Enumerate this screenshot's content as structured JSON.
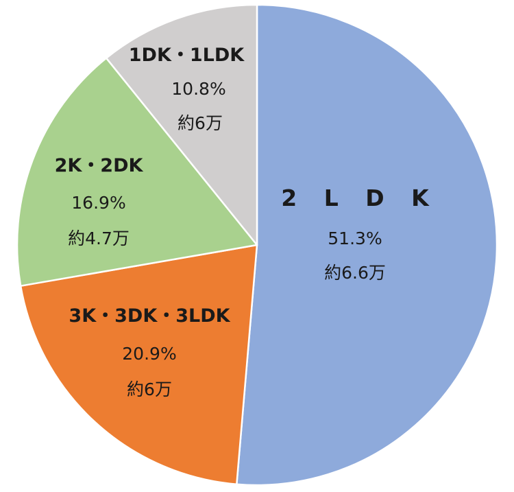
{
  "chart_data": {
    "type": "pie",
    "title": "",
    "slices": [
      {
        "label": "2 L D K",
        "percent": 51.3,
        "percent_text": "51.3%",
        "count_text": "約6.6万",
        "color": "#8eaadb"
      },
      {
        "label": "3K・3DK・3LDK",
        "percent": 20.9,
        "percent_text": "20.9%",
        "count_text": "約6万",
        "color": "#ed7d31"
      },
      {
        "label": "2K・2DK",
        "percent": 16.9,
        "percent_text": "16.9%",
        "count_text": "約4.7万",
        "color": "#a9d18e"
      },
      {
        "label": "1DK・1LDK",
        "percent": 10.8,
        "percent_text": "10.8%",
        "count_text": "約6万",
        "color": "#d0cece"
      }
    ],
    "start_angle": "12 o'clock",
    "direction": "clockwise"
  }
}
